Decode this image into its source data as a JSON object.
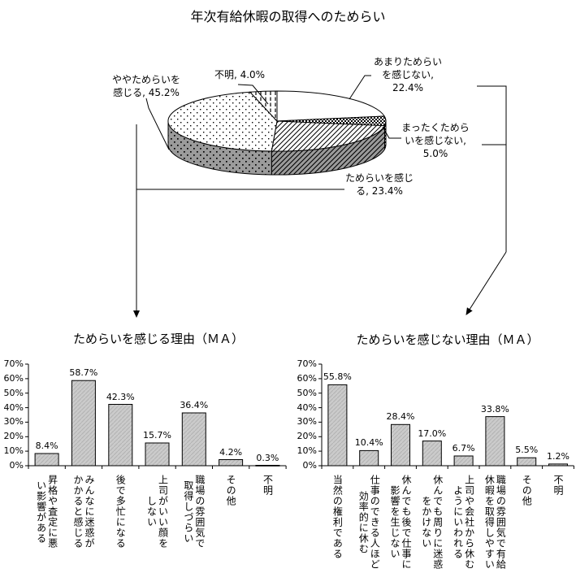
{
  "colors": {
    "foreground": "#000000",
    "background": "#ffffff",
    "bar_fill": "#cbcbcb",
    "pie_side_gray": "#9b9b9b"
  },
  "chart_data": [
    {
      "type": "pie",
      "title": "年次有給休暇の取得へのためらい",
      "style": "3d-pie-monochrome-patterns",
      "start_angle_deg": 90,
      "direction": "clockwise",
      "labels": [
        "あまりためらいを感じない",
        "まったくためらいを感じない",
        "ためらいを感じる",
        "ややためらいを感じる",
        "不明"
      ],
      "values": [
        22.4,
        5.0,
        23.4,
        45.2,
        4.0
      ],
      "patterns": [
        "white",
        "checker",
        "diag",
        "dots",
        "vdash"
      ],
      "annotations": [
        {
          "name": "amari",
          "text": "あまりためらい\nを感じない,\n22.4%"
        },
        {
          "name": "mattaku",
          "text": "まったくためら\nいを感じない,\n5.0%"
        },
        {
          "name": "tamerai",
          "text": "ためらいを感じ\nる, 23.4%"
        },
        {
          "name": "yaya",
          "text": "ややためらいを\n感じる, 45.2%"
        },
        {
          "name": "fumei",
          "text": "不明, 4.0%"
        }
      ]
    },
    {
      "type": "bar",
      "title": "ためらいを感じる理由（ＭＡ）",
      "categories": [
        "昇格や査定に悪\nい影響がある",
        "みんなに迷惑が\nかかると感じる",
        "後で多忙になる",
        "上司がいい顔を\nしない",
        "職場の雰囲気で\n取得しづらい",
        "その他",
        "不明"
      ],
      "values": [
        8.4,
        58.7,
        42.3,
        15.7,
        36.4,
        4.2,
        0.3
      ],
      "unit": "%",
      "ylim": [
        0,
        70
      ],
      "ytick_step": 10,
      "grid": false,
      "legend": "none"
    },
    {
      "type": "bar",
      "title": "ためらいを感じない理由（ＭＡ）",
      "categories": [
        "当然の権利である",
        "仕事のできる人ほど\n効率的に休む",
        "休んでも後で仕事に\n影響を生じない",
        "休んでも周りに迷惑\nをかけない",
        "上司や会社から休む\nようにいわれる",
        "職場の雰囲気で有給\n休暇を取得しやすい",
        "その他",
        "不明"
      ],
      "values": [
        55.8,
        10.4,
        28.4,
        17.0,
        6.7,
        33.8,
        5.5,
        1.2
      ],
      "unit": "%",
      "ylim": [
        0,
        70
      ],
      "ytick_step": 10,
      "grid": false,
      "legend": "none"
    }
  ]
}
